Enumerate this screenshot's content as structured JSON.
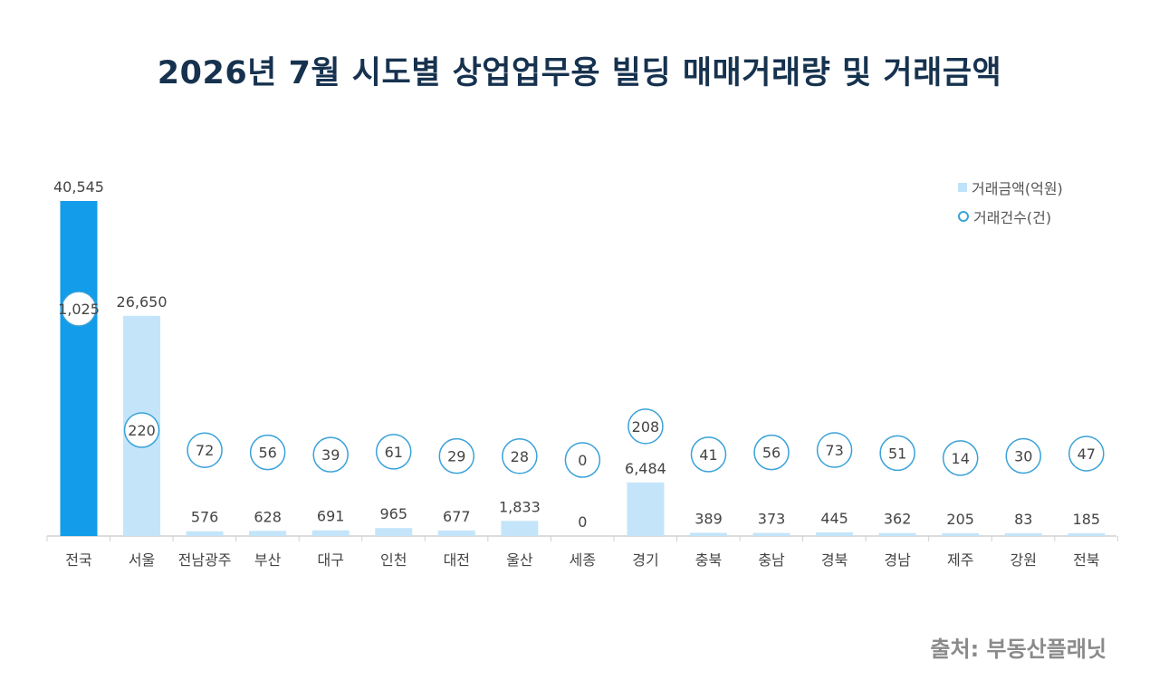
{
  "title": "2026년 7월 시도별 상업업무용 빌딩 매매거래량 및 거래금액",
  "source": "출처: 부동산플래닛",
  "legend": {
    "amount_label": "거래금액(억원)",
    "count_label": "거래건수(건)"
  },
  "colors": {
    "highlight_bar": "#129cea",
    "bar": "#c4e5f9",
    "circle_stroke": "#3aa2d8",
    "title": "#16324f"
  },
  "chart_data": {
    "type": "bar",
    "categories": [
      "전국",
      "서울",
      "전남광주",
      "부산",
      "대구",
      "인천",
      "대전",
      "울산",
      "세종",
      "경기",
      "충북",
      "충남",
      "경북",
      "경남",
      "제주",
      "강원",
      "전북"
    ],
    "series": [
      {
        "name": "거래금액(억원)",
        "type": "bar",
        "values": [
          40545,
          26650,
          576,
          628,
          691,
          965,
          677,
          1833,
          0,
          6484,
          389,
          373,
          445,
          362,
          205,
          83,
          185
        ],
        "labels": [
          "40,545",
          "26,650",
          "576",
          "628",
          "691",
          "965",
          "677",
          "1,833",
          "0",
          "6,484",
          "389",
          "373",
          "445",
          "362",
          "205",
          "83",
          "185"
        ]
      },
      {
        "name": "거래건수(건)",
        "type": "scatter",
        "values": [
          1025,
          220,
          72,
          56,
          39,
          61,
          29,
          28,
          0,
          208,
          41,
          56,
          73,
          51,
          14,
          30,
          47
        ],
        "labels": [
          "1,025",
          "220",
          "72",
          "56",
          "39",
          "61",
          "29",
          "28",
          "0",
          "208",
          "41",
          "56",
          "73",
          "51",
          "14",
          "30",
          "47"
        ]
      }
    ],
    "highlight_category": "전국",
    "ylim": [
      0,
      40545
    ],
    "legend_position": "top-right",
    "grid": false
  }
}
